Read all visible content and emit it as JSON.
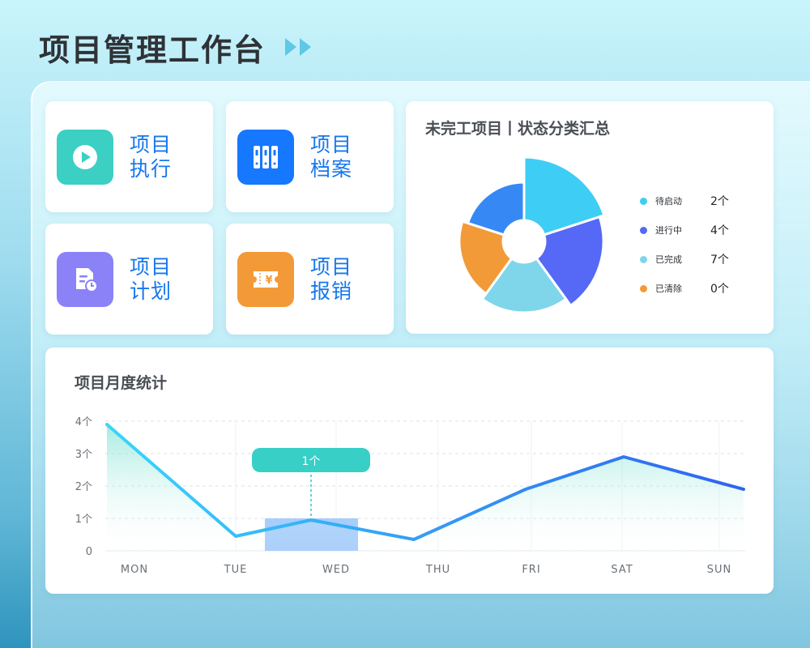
{
  "page": {
    "title": "项目管理工作台"
  },
  "quick_actions": [
    {
      "line1": "项目",
      "line2": "执行",
      "icon": "play-icon",
      "color": "#3ccfc4"
    },
    {
      "line1": "项目",
      "line2": "档案",
      "icon": "archive-icon",
      "color": "#1677ff"
    },
    {
      "line1": "项目",
      "line2": "计划",
      "icon": "plan-clock-icon",
      "color": "#8b82f7"
    },
    {
      "line1": "项目",
      "line2": "报销",
      "icon": "reimburse-ticket-icon",
      "color": "#f39a38"
    }
  ],
  "status_summary": {
    "title": "未完工项目丨状态分类汇总",
    "legend": [
      {
        "label": "待启动",
        "count": "2个",
        "color": "#3ecdf4"
      },
      {
        "label": "进行中",
        "count": "4个",
        "color": "#5568f6"
      },
      {
        "label": "已完成",
        "count": "7个",
        "color": "#7fd6ea"
      },
      {
        "label": "已清除",
        "count": "0个",
        "color": "#f39a38"
      }
    ]
  },
  "monthly": {
    "title": "项目月度统计",
    "tooltip": "1个"
  },
  "chart_data": [
    {
      "type": "pie",
      "title": "未完工项目丨状态分类汇总",
      "style": "rose, donut",
      "categories": [
        "待启动",
        "进行中",
        "已完成",
        "已清除"
      ],
      "values": [
        2,
        4,
        7,
        0
      ],
      "legend_position": "right"
    },
    {
      "type": "line",
      "title": "项目月度统计",
      "categories": [
        "MON",
        "TUE",
        "WED",
        "THU",
        "FRI",
        "SAT",
        "SUN"
      ],
      "y_tick_labels": [
        "0",
        "1个",
        "2个",
        "3个",
        "4个"
      ],
      "ylim": [
        0,
        4
      ],
      "grid": true,
      "highlight_category": "WED",
      "highlight_label": "1个",
      "series": [
        {
          "values": [
            3.9,
            0.45,
            0.95,
            0.35,
            1.9,
            2.9,
            1.9
          ],
          "color": "#3b8cf7"
        }
      ]
    }
  ]
}
